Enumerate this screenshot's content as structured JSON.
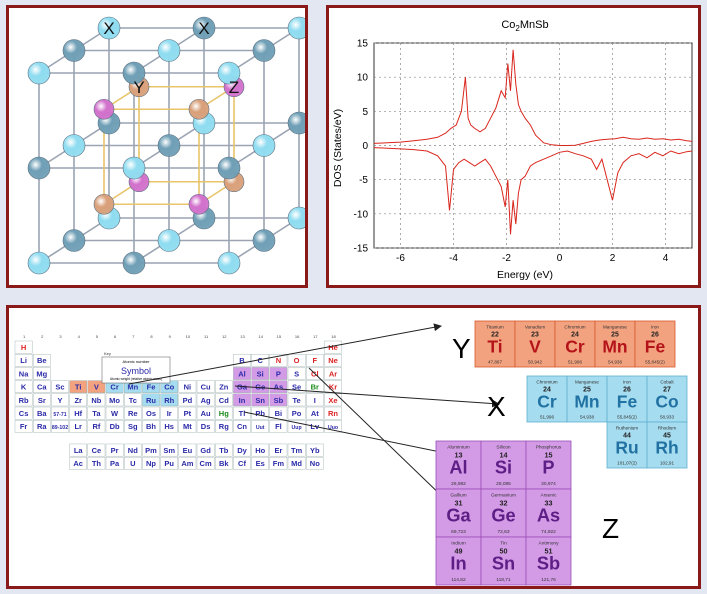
{
  "lattice": {
    "site_labels": [
      "X",
      "X",
      "Y",
      "Z"
    ],
    "atom_colors": {
      "x_light": "#8fdcf0",
      "x_dark": "#6f9fb6",
      "y": "#d9a07a",
      "z": "#d271cc"
    }
  },
  "dos": {
    "title_base": "Co",
    "title_sub": "2",
    "title_rest": "MnSb",
    "line_color": "#d9261c"
  },
  "chart_data": {
    "type": "line",
    "title": "Co2MnSb",
    "xlabel": "Energy (eV)",
    "ylabel": "DOS (States/eV)",
    "xlim": [
      -7,
      5
    ],
    "ylim": [
      -15,
      15
    ],
    "xticks": [
      -6,
      -4,
      -2,
      0,
      2,
      4
    ],
    "yticks": [
      15,
      10,
      5,
      0,
      -5,
      -10,
      -15
    ],
    "grid": true,
    "series": [
      {
        "values_x": [
          -7,
          -6.5,
          -6,
          -5.5,
          -5,
          -4.6,
          -4.3,
          -4.1,
          -3.9,
          -3.7,
          -3.55,
          -3.45,
          -3.35,
          -3.2,
          -3.0,
          -2.8,
          -2.6,
          -2.4,
          -2.2,
          -2.05,
          -1.95,
          -1.85,
          -1.75,
          -1.65,
          -1.55,
          -1.45,
          -1.3,
          -1.1,
          -0.9,
          -0.6,
          -0.3,
          0,
          0.3,
          0.6,
          0.9,
          1.2,
          1.5,
          1.8,
          2.1,
          2.4,
          2.7,
          3.0,
          3.3,
          3.6,
          3.9,
          4.2,
          4.5,
          4.8,
          5
        ],
        "values_y": [
          0.3,
          0.4,
          0.5,
          0.7,
          0.9,
          1.2,
          1.8,
          2.5,
          3.0,
          5.0,
          10.0,
          4.0,
          3.0,
          2.5,
          2.0,
          2.5,
          4.0,
          5.5,
          8.0,
          7.0,
          12.0,
          8.0,
          14.0,
          9.0,
          6.0,
          5.0,
          4.0,
          3.0,
          1.5,
          0.4,
          0.1,
          0.0,
          0.0,
          0.05,
          0.3,
          0.6,
          0.8,
          0.9,
          1.0,
          1.2,
          1.0,
          0.9,
          1.1,
          0.9,
          1.0,
          0.8,
          0.9,
          0.7,
          0.6
        ]
      },
      {
        "values_x": [
          -7,
          -6.5,
          -6,
          -5.5,
          -5,
          -4.6,
          -4.3,
          -4.15,
          -4.0,
          -3.8,
          -3.6,
          -3.4,
          -3.2,
          -3.0,
          -2.8,
          -2.6,
          -2.4,
          -2.2,
          -2.05,
          -1.95,
          -1.85,
          -1.75,
          -1.65,
          -1.55,
          -1.45,
          -1.3,
          -1.1,
          -0.9,
          -0.6,
          -0.3,
          0,
          0.3,
          0.6,
          0.9,
          1.2,
          1.4,
          1.6,
          1.8,
          2.0,
          2.2,
          2.4,
          2.7,
          3.0,
          3.3,
          3.6,
          3.9,
          4.2,
          4.5,
          4.8,
          5
        ],
        "values_y": [
          -0.3,
          -0.4,
          -0.5,
          -0.6,
          -0.8,
          -1.5,
          -3.0,
          -9.5,
          -3.5,
          -2.5,
          -2.0,
          -2.5,
          -3.0,
          -2.5,
          -2.0,
          -3.0,
          -4.5,
          -6.0,
          -9.0,
          -5.0,
          -13.0,
          -8.0,
          -11.5,
          -7.0,
          -5.0,
          -4.5,
          -3.0,
          -2.5,
          -2.0,
          -1.5,
          -1.0,
          -0.8,
          -1.2,
          -1.5,
          -2.0,
          -3.5,
          -2.0,
          -5.0,
          -8.0,
          -4.0,
          -2.5,
          -1.5,
          -1.2,
          -1.8,
          -1.0,
          -1.5,
          -0.8,
          -1.2,
          -0.9,
          -0.8
        ]
      }
    ]
  },
  "periodic": {
    "key": {
      "title": "Key",
      "line1": "Atomic number",
      "line2": "Symbol",
      "line3": "Atomic weight (relative atomic mass)"
    },
    "rows": [
      [
        "H",
        "",
        "",
        "",
        "",
        "",
        "",
        "",
        "",
        "",
        "",
        "",
        "",
        "",
        "",
        "",
        "",
        "He"
      ],
      [
        "Li",
        "Be",
        "",
        "",
        "",
        "",
        "",
        "",
        "",
        "",
        "",
        "",
        "B",
        "C",
        "N",
        "O",
        "F",
        "Ne"
      ],
      [
        "Na",
        "Mg",
        "",
        "",
        "",
        "",
        "",
        "",
        "",
        "",
        "",
        "",
        "Al",
        "Si",
        "P",
        "S",
        "Cl",
        "Ar"
      ],
      [
        "K",
        "Ca",
        "Sc",
        "Ti",
        "V",
        "Cr",
        "Mn",
        "Fe",
        "Co",
        "Ni",
        "Cu",
        "Zn",
        "Ga",
        "Ge",
        "As",
        "Se",
        "Br",
        "Kr"
      ],
      [
        "Rb",
        "Sr",
        "Y",
        "Zr",
        "Nb",
        "Mo",
        "Tc",
        "Ru",
        "Rh",
        "Pd",
        "Ag",
        "Cd",
        "In",
        "Sn",
        "Sb",
        "Te",
        "I",
        "Xe"
      ],
      [
        "Cs",
        "Ba",
        "57-71",
        "Hf",
        "Ta",
        "W",
        "Re",
        "Os",
        "Ir",
        "Pt",
        "Au",
        "Hg",
        "Tl",
        "Pb",
        "Bi",
        "Po",
        "At",
        "Rn"
      ],
      [
        "Fr",
        "Ra",
        "89-102",
        "Lr",
        "Rf",
        "Db",
        "Sg",
        "Bh",
        "Hs",
        "Mt",
        "Ds",
        "Rg",
        "Cn",
        "Uut",
        "Fl",
        "Uup",
        "Lv",
        "Uuo"
      ]
    ],
    "lanthanides": [
      "La",
      "Ce",
      "Pr",
      "Nd",
      "Pm",
      "Sm",
      "Eu",
      "Gd",
      "Tb",
      "Dy",
      "Ho",
      "Er",
      "Tm",
      "Yb"
    ],
    "actinides": [
      "Ac",
      "Th",
      "Pa",
      "U",
      "Np",
      "Pu",
      "Am",
      "Cm",
      "Bk",
      "Cf",
      "Es",
      "Fm",
      "Md",
      "No"
    ]
  },
  "groups": {
    "Y": {
      "label": "Y",
      "color": "#f3a27f",
      "border": "#d5572a",
      "elements": [
        {
          "name": "Titanium",
          "number": "22",
          "symbol": "Ti",
          "weight": "47,867"
        },
        {
          "name": "Vanadium",
          "number": "23",
          "symbol": "V",
          "weight": "50,942"
        },
        {
          "name": "Chromium",
          "number": "24",
          "symbol": "Cr",
          "weight": "51,996"
        },
        {
          "name": "Manganese",
          "number": "25",
          "symbol": "Mn",
          "weight": "54,938"
        },
        {
          "name": "Iron",
          "number": "26",
          "symbol": "Fe",
          "weight": "55,845(2)"
        }
      ]
    },
    "X": {
      "label": "X",
      "color": "#a5dcef",
      "border": "#5fb1cf",
      "elements": [
        {
          "name": "Chromium",
          "number": "24",
          "symbol": "Cr",
          "weight": "51,996"
        },
        {
          "name": "Manganese",
          "number": "25",
          "symbol": "Mn",
          "weight": "54,938"
        },
        {
          "name": "Iron",
          "number": "26",
          "symbol": "Fe",
          "weight": "55,845(2)"
        },
        {
          "name": "Cobalt",
          "number": "27",
          "symbol": "Co",
          "weight": "58,933"
        },
        {
          "name": "Ruthenium",
          "number": "44",
          "symbol": "Ru",
          "weight": "101,07(2)"
        },
        {
          "name": "Rhodium",
          "number": "45",
          "symbol": "Rh",
          "weight": "102,91"
        }
      ]
    },
    "Z": {
      "label": "Z",
      "color": "#d39ae6",
      "border": "#9b51b8",
      "elements": [
        {
          "name": "Aluminium",
          "number": "13",
          "symbol": "Al",
          "weight": "26,982"
        },
        {
          "name": "Silicon",
          "number": "14",
          "symbol": "Si",
          "weight": "28,085"
        },
        {
          "name": "Phosphorus",
          "number": "15",
          "symbol": "P",
          "weight": "30,974"
        },
        {
          "name": "Gallium",
          "number": "31",
          "symbol": "Ga",
          "weight": "69,723"
        },
        {
          "name": "Germanium",
          "number": "32",
          "symbol": "Ge",
          "weight": "72,63"
        },
        {
          "name": "Arsenic",
          "number": "33",
          "symbol": "As",
          "weight": "74,922"
        },
        {
          "name": "Indium",
          "number": "49",
          "symbol": "In",
          "weight": "114,82"
        },
        {
          "name": "Tin",
          "number": "50",
          "symbol": "Sn",
          "weight": "118,71"
        },
        {
          "name": "Antimony",
          "number": "51",
          "symbol": "Sb",
          "weight": "121,76"
        }
      ]
    }
  }
}
